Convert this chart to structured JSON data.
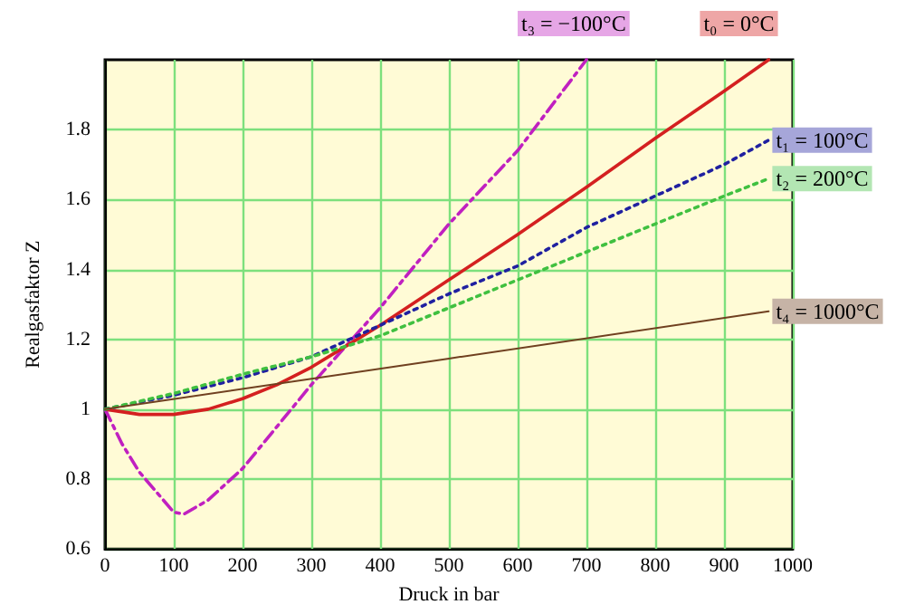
{
  "chart_data": {
    "type": "line",
    "xlabel": "Druck in bar",
    "ylabel": "Realgasfaktor Z",
    "xlim": [
      0,
      1000
    ],
    "xticks": [
      0,
      100,
      200,
      300,
      400,
      500,
      600,
      700,
      800,
      900,
      1000
    ],
    "ylim": [
      0.6,
      2.0
    ],
    "yticks": [
      0.6,
      0.8,
      1,
      1.2,
      1.4,
      1.6,
      1.8
    ],
    "grid": true,
    "legend": false,
    "marker": "none",
    "series": [
      {
        "name": "t₃ = −100°C",
        "color": "#c020c0",
        "line_style": "dashed",
        "x": [
          0,
          25,
          50,
          100,
          115,
          150,
          200,
          250,
          300,
          350,
          400,
          500,
          600,
          700
        ],
        "values": [
          1.0,
          0.9,
          0.82,
          0.705,
          0.7,
          0.74,
          0.83,
          0.95,
          1.07,
          1.18,
          1.29,
          1.53,
          1.74,
          2.0
        ]
      },
      {
        "name": "t₀ = 0°C",
        "color": "#d42020",
        "line_style": "solid",
        "x": [
          0,
          50,
          100,
          150,
          200,
          250,
          300,
          350,
          400,
          500,
          600,
          700,
          800,
          900,
          965
        ],
        "values": [
          1.0,
          0.985,
          0.985,
          1.0,
          1.03,
          1.07,
          1.12,
          1.18,
          1.24,
          1.37,
          1.5,
          1.635,
          1.775,
          1.91,
          2.0
        ]
      },
      {
        "name": "t₁ = 100°C",
        "color": "#2020a0",
        "line_style": "dotted",
        "x": [
          0,
          100,
          200,
          300,
          400,
          500,
          600,
          700,
          800,
          900,
          965
        ],
        "values": [
          1.0,
          1.04,
          1.09,
          1.15,
          1.24,
          1.33,
          1.41,
          1.52,
          1.61,
          1.7,
          1.77
        ]
      },
      {
        "name": "t₂ = 200°C",
        "color": "#40c040",
        "line_style": "dotted",
        "x": [
          0,
          100,
          200,
          300,
          400,
          500,
          600,
          700,
          800,
          900,
          965
        ],
        "values": [
          1.0,
          1.045,
          1.1,
          1.15,
          1.21,
          1.29,
          1.37,
          1.45,
          1.53,
          1.61,
          1.66
        ]
      },
      {
        "name": "t₄ = 1000°C",
        "color": "#704020",
        "line_style": "solid",
        "x": [
          0,
          500,
          965
        ],
        "values": [
          1.0,
          1.145,
          1.28
        ]
      }
    ]
  }
}
